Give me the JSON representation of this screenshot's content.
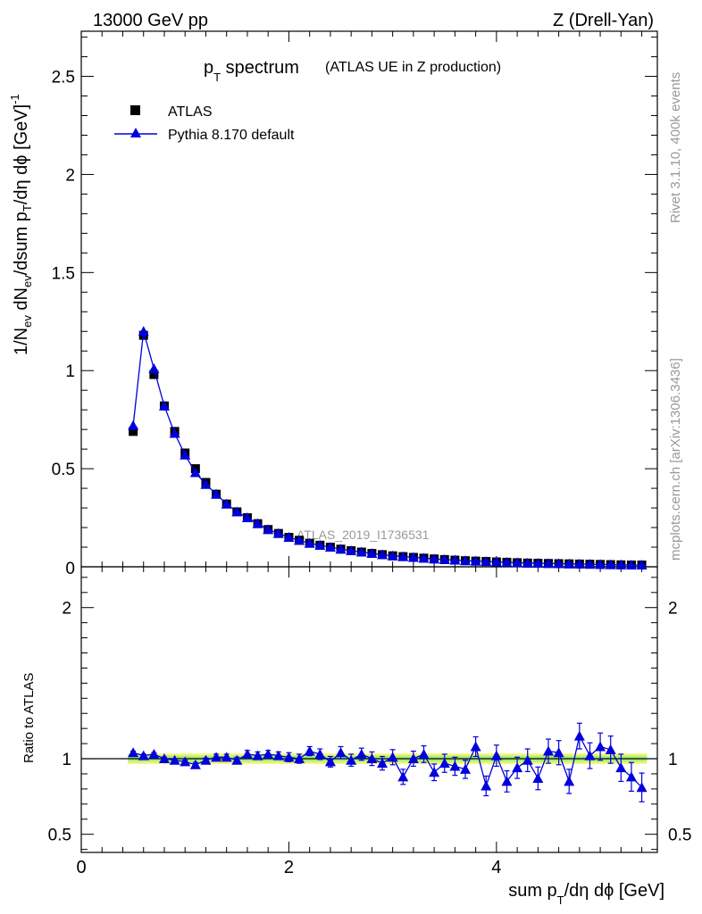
{
  "header": {
    "left": "13000 GeV pp",
    "right": "Z (Drell-Yan)"
  },
  "title": {
    "main": "p",
    "main_sub": "T",
    "main_rest": " spectrum",
    "paren": "(ATLAS UE in Z production)"
  },
  "side_labels": {
    "rivet": "Rivet 3.1.10,  400k events",
    "mcplots": "mcplots.cern.ch [arXiv:1306.3436]"
  },
  "watermark": "ATLAS_2019_I1736531",
  "colors": {
    "mc": "#0000dd",
    "band_outer": "#f3f57a",
    "band_inner": "#a9ef7a"
  },
  "chart_data": [
    {
      "type": "scatter",
      "panel": "main",
      "ylabel": "1/N_ev dN_ev/dsum p_T/dη dϕ [GeV]^-1",
      "ylim": [
        0,
        2.73
      ],
      "xlim": [
        0,
        5.55
      ],
      "yticks": [
        "0.5",
        "1",
        "1.5",
        "2",
        "2.5"
      ],
      "legend": [
        "ATLAS",
        "Pythia 8.170 default"
      ],
      "legend_position": "top-left",
      "x": [
        0.5,
        0.6,
        0.7,
        0.8,
        0.9,
        1.0,
        1.1,
        1.2,
        1.3,
        1.4,
        1.5,
        1.6,
        1.7,
        1.8,
        1.9,
        2.0,
        2.1,
        2.2,
        2.3,
        2.4,
        2.5,
        2.6,
        2.7,
        2.8,
        2.9,
        3.0,
        3.1,
        3.2,
        3.3,
        3.4,
        3.5,
        3.6,
        3.7,
        3.8,
        3.9,
        4.0,
        4.1,
        4.2,
        4.3,
        4.4,
        4.5,
        4.6,
        4.7,
        4.8,
        4.9,
        5.0,
        5.1,
        5.2,
        5.3,
        5.4
      ],
      "series": [
        {
          "name": "ATLAS",
          "values": [
            0.69,
            1.18,
            0.98,
            0.82,
            0.69,
            0.58,
            0.5,
            0.43,
            0.37,
            0.32,
            0.28,
            0.25,
            0.22,
            0.19,
            0.17,
            0.15,
            0.135,
            0.12,
            0.11,
            0.1,
            0.09,
            0.082,
            0.075,
            0.068,
            0.062,
            0.056,
            0.052,
            0.048,
            0.044,
            0.04,
            0.037,
            0.034,
            0.031,
            0.029,
            0.027,
            0.025,
            0.023,
            0.021,
            0.019,
            0.018,
            0.017,
            0.016,
            0.015,
            0.014,
            0.013,
            0.012,
            0.011,
            0.01,
            0.009,
            0.009
          ]
        },
        {
          "name": "Pythia 8.170 default",
          "values": [
            0.72,
            1.2,
            1.01,
            0.82,
            0.68,
            0.57,
            0.48,
            0.42,
            0.37,
            0.32,
            0.28,
            0.25,
            0.22,
            0.19,
            0.17,
            0.15,
            0.135,
            0.12,
            0.11,
            0.1,
            0.09,
            0.082,
            0.075,
            0.068,
            0.062,
            0.056,
            0.052,
            0.048,
            0.044,
            0.04,
            0.037,
            0.034,
            0.031,
            0.029,
            0.027,
            0.025,
            0.023,
            0.021,
            0.019,
            0.018,
            0.017,
            0.016,
            0.015,
            0.014,
            0.013,
            0.012,
            0.011,
            0.01,
            0.009,
            0.009
          ]
        }
      ]
    },
    {
      "type": "scatter",
      "panel": "ratio",
      "ylabel": "Ratio to ATLAS",
      "xlabel": "sum p_T/dη dϕ [GeV]",
      "ylim": [
        0.38,
        2.27
      ],
      "xlim": [
        0,
        5.55
      ],
      "yticks": [
        "0.5",
        "1",
        "2"
      ],
      "xticks": [
        "0",
        "2",
        "4"
      ],
      "x": [
        0.5,
        0.6,
        0.7,
        0.8,
        0.9,
        1.0,
        1.1,
        1.2,
        1.3,
        1.4,
        1.5,
        1.6,
        1.7,
        1.8,
        1.9,
        2.0,
        2.1,
        2.2,
        2.3,
        2.4,
        2.5,
        2.6,
        2.7,
        2.8,
        2.9,
        3.0,
        3.1,
        3.2,
        3.3,
        3.4,
        3.5,
        3.6,
        3.7,
        3.8,
        3.9,
        4.0,
        4.1,
        4.2,
        4.3,
        4.4,
        4.5,
        4.6,
        4.7,
        4.8,
        4.9,
        5.0,
        5.1,
        5.2,
        5.3,
        5.4
      ],
      "series": [
        {
          "name": "Pythia 8.170 default",
          "values": [
            1.04,
            1.02,
            1.03,
            1.0,
            0.99,
            0.98,
            0.96,
            0.99,
            1.01,
            1.01,
            0.99,
            1.03,
            1.02,
            1.03,
            1.02,
            1.01,
            1.0,
            1.05,
            1.03,
            0.98,
            1.04,
            0.99,
            1.03,
            1.0,
            0.97,
            1.01,
            0.88,
            1.0,
            1.03,
            0.91,
            0.97,
            0.95,
            0.93,
            1.08,
            0.82,
            1.02,
            0.85,
            0.94,
            0.99,
            0.87,
            1.05,
            1.04,
            0.85,
            1.15,
            1.02,
            1.08,
            1.06,
            0.94,
            0.88,
            0.81
          ],
          "errors": [
            0.01,
            0.01,
            0.01,
            0.01,
            0.01,
            0.01,
            0.015,
            0.015,
            0.02,
            0.02,
            0.02,
            0.025,
            0.025,
            0.025,
            0.025,
            0.03,
            0.03,
            0.03,
            0.035,
            0.035,
            0.04,
            0.04,
            0.04,
            0.045,
            0.045,
            0.05,
            0.05,
            0.05,
            0.055,
            0.055,
            0.06,
            0.06,
            0.06,
            0.065,
            0.065,
            0.07,
            0.07,
            0.07,
            0.075,
            0.075,
            0.08,
            0.08,
            0.08,
            0.085,
            0.085,
            0.09,
            0.09,
            0.09,
            0.095,
            0.095
          ]
        }
      ],
      "band_x_range": [
        0.45,
        5.45
      ],
      "band_inner_halfwidth": 0.02,
      "band_outer_halfwidth": 0.035
    }
  ]
}
